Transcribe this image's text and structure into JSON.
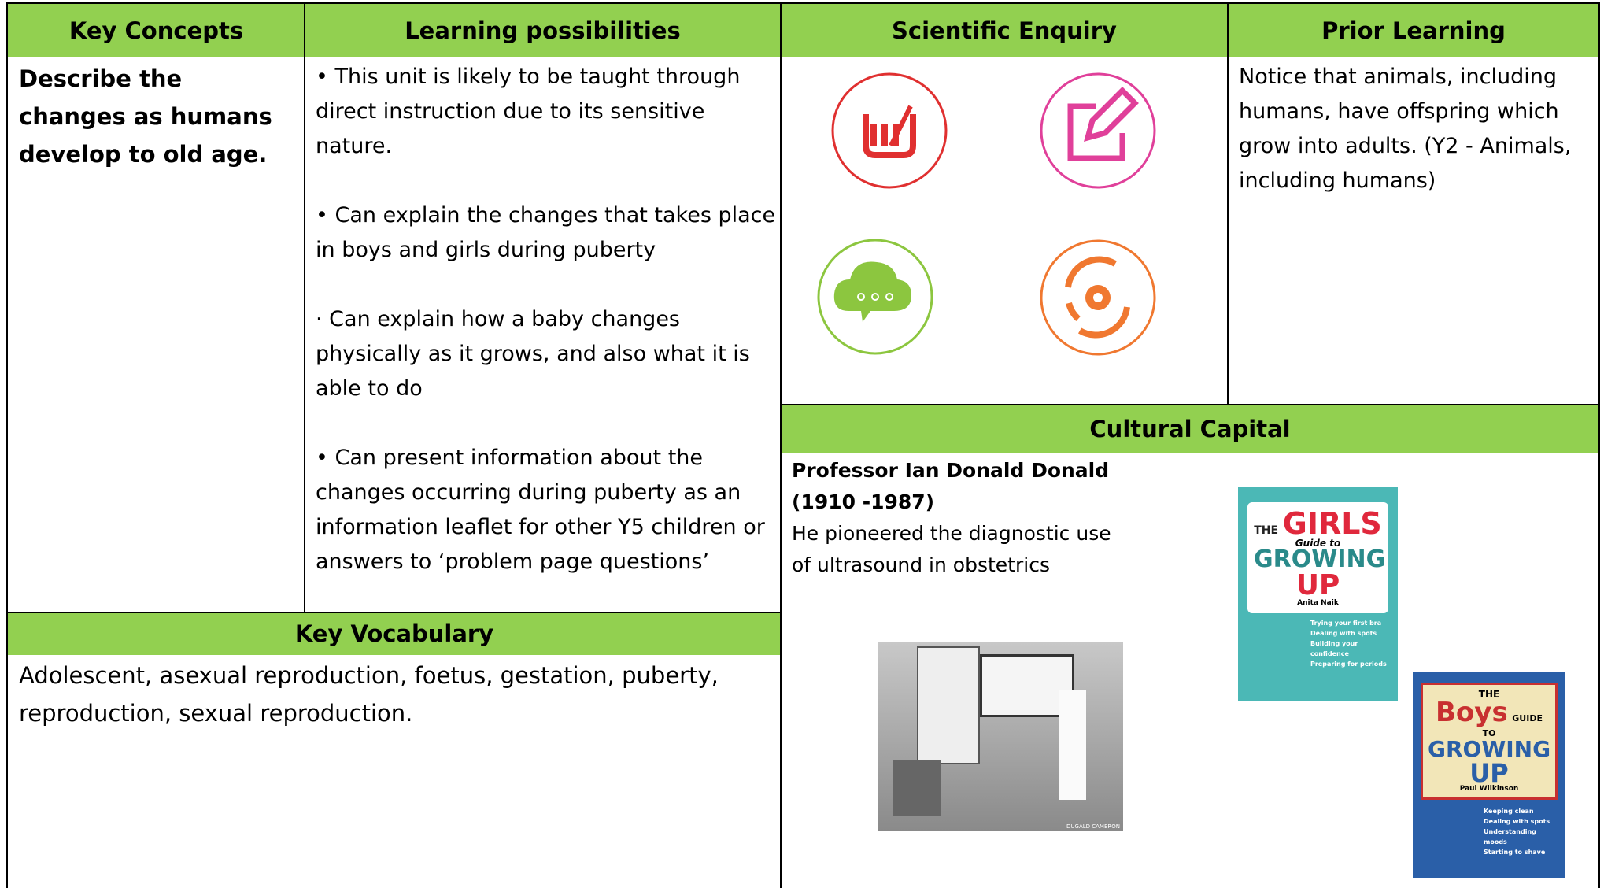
{
  "headers": {
    "key_concepts": "Key Concepts",
    "learning_possibilities": "Learning possibilities",
    "scientific_enquiry": "Scientific Enquiry",
    "prior_learning": "Prior Learning",
    "key_vocabulary": "Key Vocabulary",
    "cultural_capital": "Cultural Capital"
  },
  "key_concepts": "Describe the changes as humans develop to old age.",
  "learning_possibilities": [
    "• This unit is likely to be taught through direct instruction due to its sensitive nature.",
    "• Can explain the changes that takes place in boys and girls during puberty",
    "· Can explain how a baby changes physically as it grows, and also what it is able to do",
    "• Can present information about the changes occurring during puberty as an information leaflet for other Y5 children or answers to ‘problem page questions’"
  ],
  "prior_learning": "Notice that animals, including humans, have offspring which grow into adults. (Y2 - Animals, including humans)",
  "key_vocabulary": "Adolescent, asexual reproduction, foetus, gestation, puberty, reproduction, sexual reproduction.",
  "cultural_capital": {
    "name": "Professor Ian Donald Donald",
    "dates": "(1910 -1987)",
    "description": "He pioneered the diagnostic use of ultrasound in obstetrics",
    "photo_credit": "DUGALD CAMERON"
  },
  "books": [
    {
      "the": "THE",
      "title": "GIRLS",
      "subtitle": "Guide to",
      "growing": "GROWING",
      "up": "UP",
      "author": "Anita Naik",
      "points": [
        "Trying your first bra",
        "Dealing with spots",
        "Building your confidence",
        "Preparing for periods"
      ]
    },
    {
      "the": "THE",
      "title": "Boys",
      "subtitle": "GUIDE TO",
      "growing": "GROWING",
      "up": "UP",
      "author": "Paul Wilkinson",
      "points": [
        "Keeping clean",
        "Dealing with spots",
        "Understanding moods",
        "Starting to shave"
      ]
    }
  ]
}
